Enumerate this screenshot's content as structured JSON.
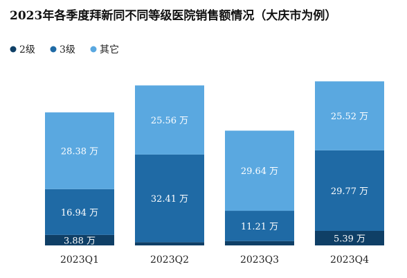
{
  "chart_data": {
    "type": "bar",
    "stacked": true,
    "title": "2023年各季度拜新同不同等级医院销售额情况（大庆市为例）",
    "categories": [
      "2023Q1",
      "2023Q2",
      "2023Q3",
      "2023Q4"
    ],
    "unit": "万",
    "series": [
      {
        "name": "2级",
        "color": "#0f3f66",
        "values": [
          3.88,
          1.2,
          1.6,
          5.39
        ],
        "labels": [
          "3.88 万",
          "",
          "",
          "5.39 万"
        ]
      },
      {
        "name": "3级",
        "color": "#1f6aa5",
        "values": [
          16.94,
          32.41,
          11.21,
          29.77
        ],
        "labels": [
          "16.94 万",
          "32.41 万",
          "11.21 万",
          "29.77 万"
        ]
      },
      {
        "name": "其它",
        "color": "#5aa8e0",
        "values": [
          28.38,
          25.56,
          29.64,
          25.52
        ],
        "labels": [
          "28.38 万",
          "25.56 万",
          "29.64 万",
          "25.52 万"
        ]
      }
    ],
    "legend": {
      "position": "top-left",
      "marker": "●"
    },
    "grid": false
  }
}
